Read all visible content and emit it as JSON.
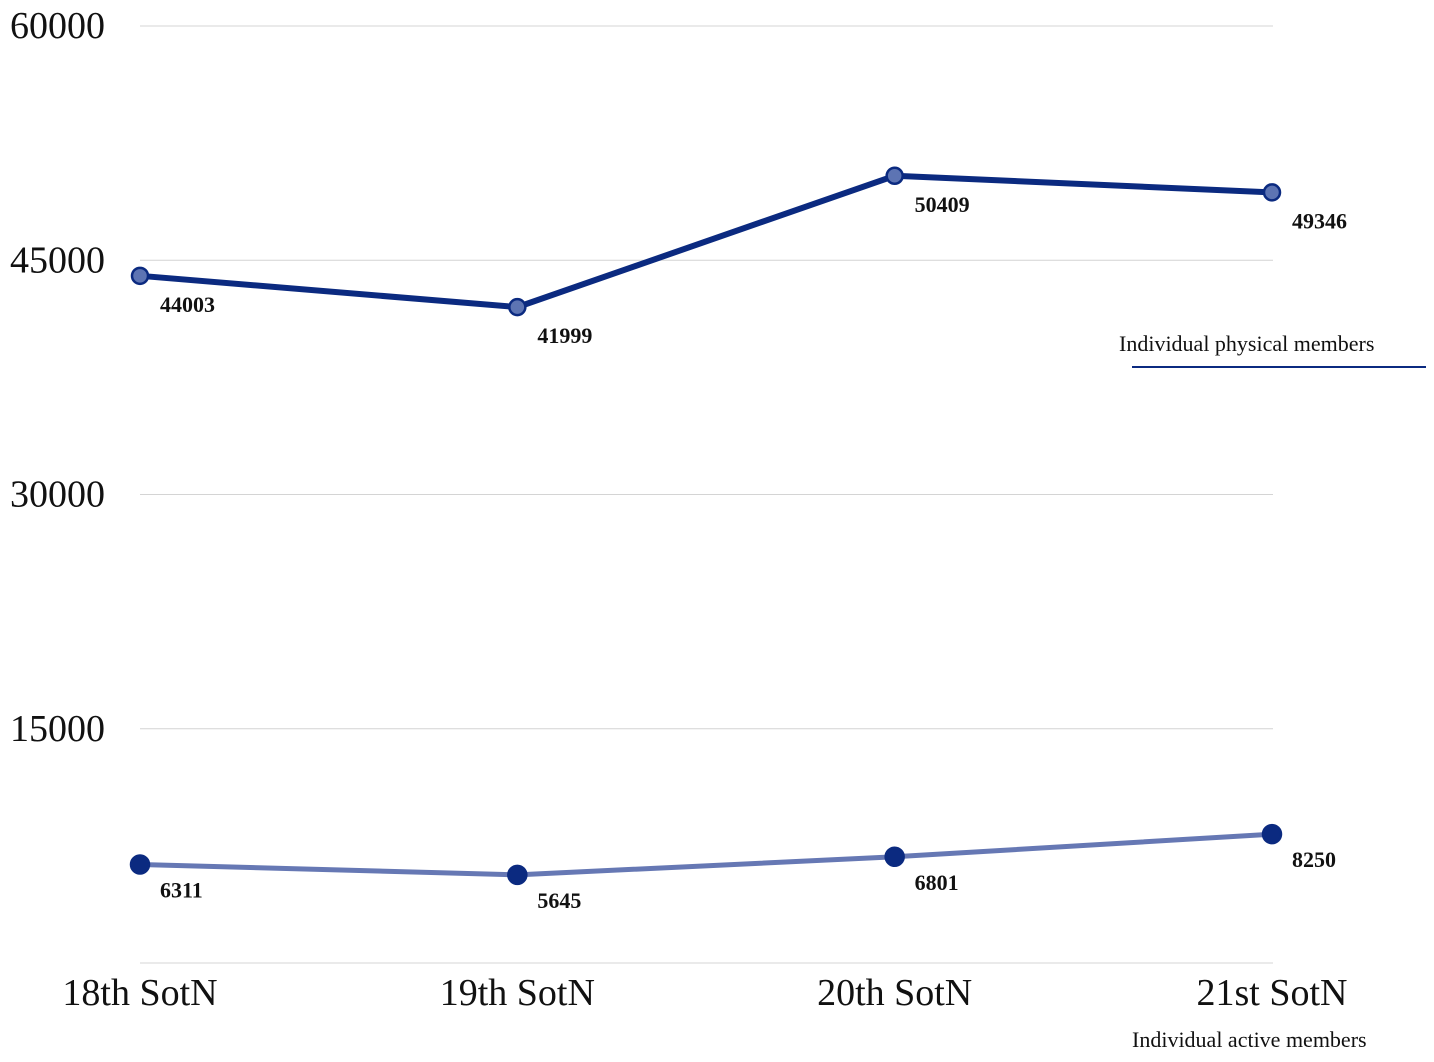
{
  "chart_data": {
    "type": "line",
    "title": "",
    "xlabel": "",
    "ylabel": "",
    "categories": [
      "18th SotN",
      "19th SotN",
      "20th SotN",
      "21st SotN"
    ],
    "ylim": [
      0,
      60000
    ],
    "y_ticks": [
      "15000",
      "30000",
      "45000",
      "60000"
    ],
    "grid": true,
    "legend_placement": "right",
    "series": [
      {
        "name": "Individual physical members",
        "values": [
          44003,
          41999,
          50409,
          49346
        ],
        "labels": [
          "44003",
          "41999",
          "50409",
          "49346"
        ],
        "line_color": "#0b2a80",
        "marker_fill": "#5d74b3",
        "marker_stroke": "#0b2a80"
      },
      {
        "name": "Individual active members",
        "values": [
          6311,
          5645,
          6801,
          8250
        ],
        "labels": [
          "6311",
          "5645",
          "6801",
          "8250"
        ],
        "line_color": "#6678b4",
        "marker_fill": "#0b2a80",
        "marker_stroke": "#0b2a80"
      }
    ]
  }
}
